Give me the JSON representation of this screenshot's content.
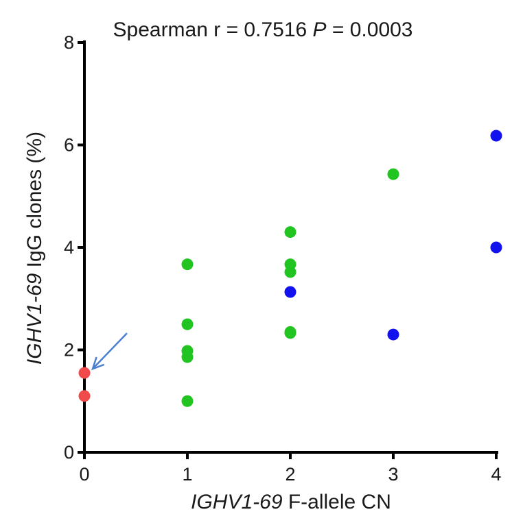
{
  "chart_data": {
    "type": "scatter",
    "title": {
      "prefix": "Spearman r = 0.7516 ",
      "p_symbol": "P",
      "suffix": " = 0.0003"
    },
    "xlabel": {
      "gene": "IGHV1-69",
      "rest": " F-allele CN"
    },
    "ylabel": {
      "gene": "IGHV1-69",
      "rest": " IgG clones (%)"
    },
    "xlim": [
      0,
      4
    ],
    "ylim": [
      0,
      8
    ],
    "x_ticks": [
      0,
      1,
      2,
      3,
      4
    ],
    "y_ticks": [
      0,
      2,
      4,
      6,
      8
    ],
    "grid": false,
    "colors": {
      "red": "#f04a4a",
      "green": "#22c422",
      "blue": "#1212ee",
      "arrow": "#4a7fd0"
    },
    "series": [
      {
        "color": "red",
        "points": [
          {
            "x": 0,
            "y": 1.55
          },
          {
            "x": 0,
            "y": 1.1
          }
        ]
      },
      {
        "color": "green",
        "points": [
          {
            "x": 1,
            "y": 3.67
          },
          {
            "x": 1,
            "y": 2.5
          },
          {
            "x": 1,
            "y": 1.98
          },
          {
            "x": 1,
            "y": 1.86
          },
          {
            "x": 1,
            "y": 1.0
          },
          {
            "x": 2,
            "y": 4.3
          },
          {
            "x": 2,
            "y": 3.67
          },
          {
            "x": 2,
            "y": 3.52
          },
          {
            "x": 2,
            "y": 2.35
          },
          {
            "x": 2,
            "y": 2.33
          },
          {
            "x": 3,
            "y": 5.43
          }
        ]
      },
      {
        "color": "blue",
        "points": [
          {
            "x": 2,
            "y": 3.13
          },
          {
            "x": 3,
            "y": 2.3
          },
          {
            "x": 4,
            "y": 6.18
          },
          {
            "x": 4,
            "y": 4.0
          }
        ]
      }
    ],
    "annotation": {
      "type": "arrow",
      "target": {
        "x": 0,
        "y": 1.55
      }
    }
  }
}
